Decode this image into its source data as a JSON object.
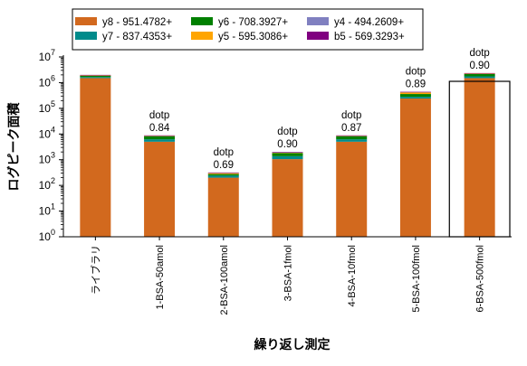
{
  "chart_data": {
    "type": "bar",
    "stacked": true,
    "yscale": "log",
    "ylim": [
      1,
      10000000
    ],
    "xlabel": "繰り返し測定",
    "ylabel": "ログピーク面積",
    "categories": [
      "ライブラリ",
      "1-BSA-50amol",
      "2-BSA-100amol",
      "3-BSA-1fmol",
      "4-BSA-10fmol",
      "5-BSA-100fmol",
      "6-BSA-500fmol"
    ],
    "y_ticks": [
      {
        "base": "10",
        "exp": "0"
      },
      {
        "base": "10",
        "exp": "1"
      },
      {
        "base": "10",
        "exp": "2"
      },
      {
        "base": "10",
        "exp": "3"
      },
      {
        "base": "10",
        "exp": "4"
      },
      {
        "base": "10",
        "exp": "5"
      },
      {
        "base": "10",
        "exp": "6"
      },
      {
        "base": "10",
        "exp": "7"
      }
    ],
    "series": [
      {
        "name": "y8 - 951.4782+",
        "color": "#D2691E",
        "values": [
          1500000,
          5000,
          200,
          1050,
          5000,
          240000,
          1500000
        ]
      },
      {
        "name": "y7 - 837.4353+",
        "color": "#008B8B",
        "values": [
          150000,
          1200,
          40,
          320,
          1200,
          40000,
          250000
        ]
      },
      {
        "name": "y6 - 708.3927+",
        "color": "#008000",
        "values": [
          200000,
          2000,
          35,
          440,
          2000,
          80000,
          400000
        ]
      },
      {
        "name": "y5 - 595.3086+",
        "color": "#FFA500",
        "values": [
          50000,
          300,
          25,
          70,
          300,
          60000,
          100000
        ]
      },
      {
        "name": "y4 - 494.2609+",
        "color": "#8080C0",
        "values": [
          60000,
          200,
          10,
          60,
          200,
          10000,
          60000
        ]
      },
      {
        "name": "b5 - 569.3293+",
        "color": "#800080",
        "values": [
          40000,
          150,
          8,
          60,
          150,
          8000,
          40000
        ]
      }
    ],
    "legend_position": "top",
    "annotations": [
      {
        "category_index": 1,
        "label": "dotp",
        "value": "0.84"
      },
      {
        "category_index": 2,
        "label": "dotp",
        "value": "0.69"
      },
      {
        "category_index": 3,
        "label": "dotp",
        "value": "0.90"
      },
      {
        "category_index": 4,
        "label": "dotp",
        "value": "0.87"
      },
      {
        "category_index": 5,
        "label": "dotp",
        "value": "0.89"
      },
      {
        "category_index": 6,
        "label": "dotp",
        "value": "0.90"
      }
    ],
    "selected_category_index": 6
  }
}
